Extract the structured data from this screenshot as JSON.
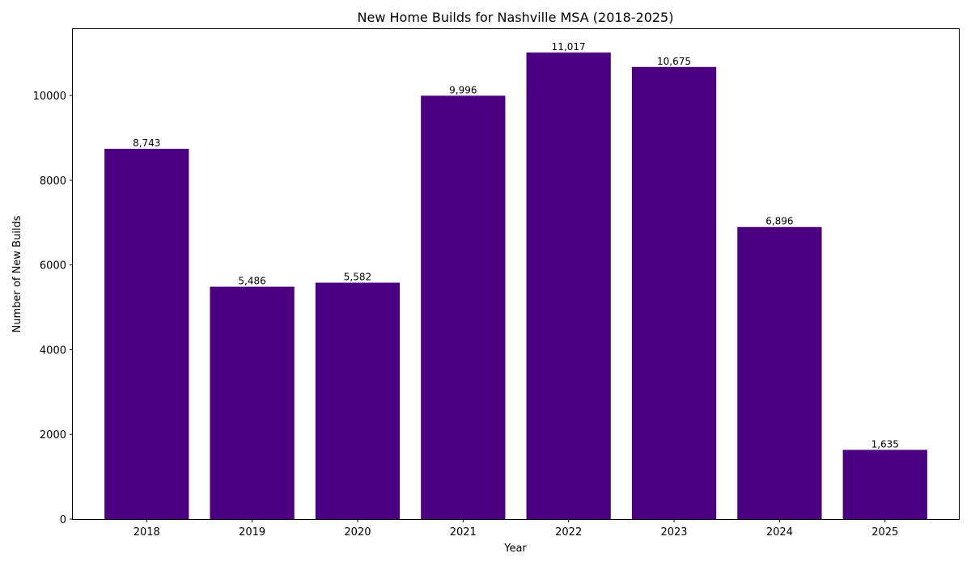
{
  "chart_data": {
    "type": "bar",
    "title": "New Home Builds for Nashville MSA (2018-2025)",
    "xlabel": "Year",
    "ylabel": "Number of New Builds",
    "categories": [
      "2018",
      "2019",
      "2020",
      "2021",
      "2022",
      "2023",
      "2024",
      "2025"
    ],
    "values": [
      8743,
      5486,
      5582,
      9996,
      11017,
      10675,
      6896,
      1635
    ],
    "value_labels": [
      "8,743",
      "5,486",
      "5,582",
      "9,996",
      "11,017",
      "10,675",
      "6,896",
      "1,635"
    ],
    "yticks": [
      0,
      2000,
      4000,
      6000,
      8000,
      10000
    ],
    "ylim": [
      0,
      11568
    ],
    "bar_color": "#4b0082",
    "grid": false
  }
}
